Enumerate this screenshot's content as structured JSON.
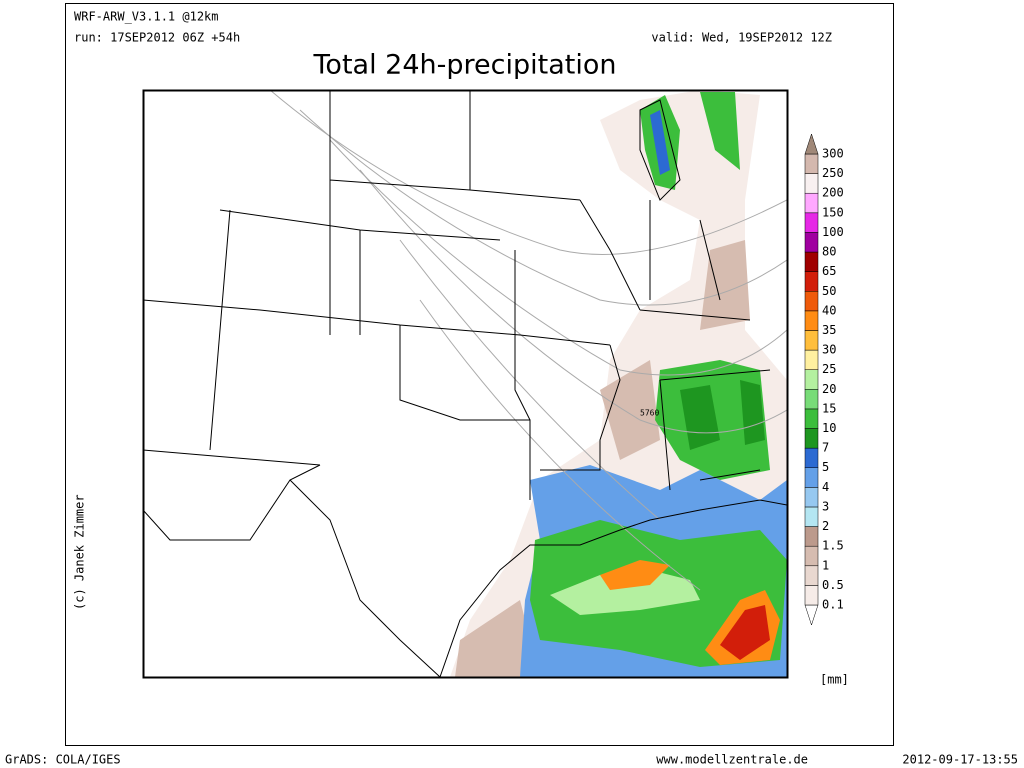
{
  "header": {
    "model": "WRF-ARW_V3.1.1 @12km",
    "run": "run: 17SEP2012 06Z +54h",
    "valid": "valid: Wed, 19SEP2012 12Z",
    "title": "Total 24h-precipitation"
  },
  "map": {
    "copyright": "(c) Janek Zimmer",
    "contour_label": "5760"
  },
  "colorbar": {
    "unit": "[mm]",
    "levels": [
      0.1,
      0.5,
      1,
      1.5,
      2,
      3,
      4,
      5,
      7,
      10,
      15,
      20,
      25,
      30,
      35,
      40,
      50,
      65,
      80,
      100,
      150,
      200,
      250,
      300
    ],
    "colors": [
      "#ffffff",
      "#f6ece8",
      "#e9d8d0",
      "#d6bcb0",
      "#bc9a8c",
      "#b4e6f2",
      "#96c8f0",
      "#64a0e8",
      "#2c6ad2",
      "#1e9620",
      "#3cbe3c",
      "#78dc78",
      "#b4f0a0",
      "#fff0a0",
      "#ffbe3c",
      "#ff8c14",
      "#ef5a0a",
      "#d21e0a",
      "#a00000",
      "#a000a0",
      "#e628e6",
      "#ffa8ff",
      "#f8f0f0",
      "#d4b8ae",
      "#a08878"
    ]
  },
  "footer": {
    "left": "GrADS: COLA/IGES",
    "center": "www.modellzentrale.de",
    "right": "2012-09-17-13:55"
  }
}
